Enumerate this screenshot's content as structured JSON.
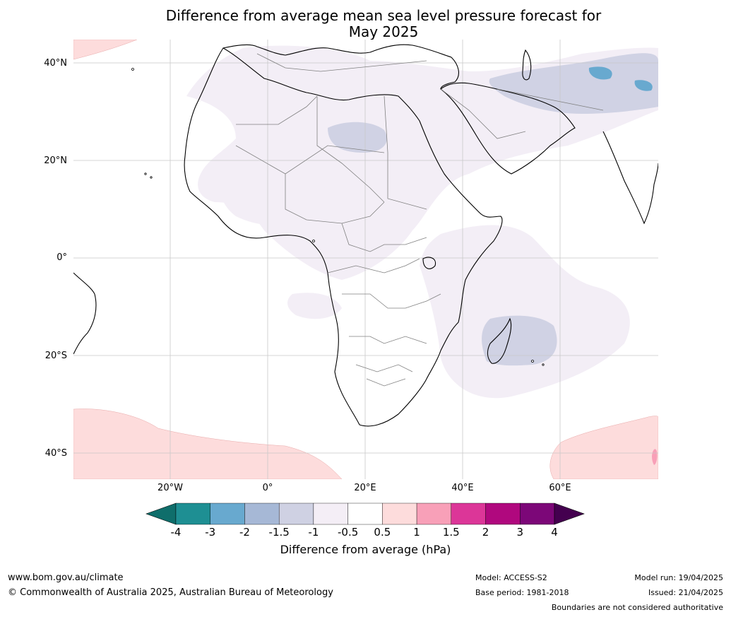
{
  "title": {
    "line1": "Difference from average mean sea level pressure forecast for",
    "line2": "May 2025"
  },
  "axes": {
    "lat_labels": [
      "40°N",
      "20°N",
      "0°",
      "20°S",
      "40°S"
    ],
    "lon_labels": [
      "20°W",
      "0°",
      "20°E",
      "40°E",
      "60°E"
    ],
    "lon_range": [
      -40,
      80
    ],
    "lat_range": [
      -45,
      45
    ],
    "grid": true
  },
  "colorbar": {
    "ticks": [
      "-4",
      "-3",
      "-2",
      "-1.5",
      "-1",
      "-0.5",
      "0.5",
      "1",
      "1.5",
      "2",
      "3",
      "4"
    ],
    "colors": [
      "#0f6e6b",
      "#1e8f93",
      "#68a9cf",
      "#a6b8d6",
      "#cfd1e3",
      "#f4eef6",
      "#ffffff",
      "#fddcdc",
      "#f8a0b8",
      "#dc3698",
      "#b0087e",
      "#7c0778",
      "#44004f"
    ],
    "label": "Difference from average (hPa)"
  },
  "map_colors": {
    "land_line": "#000000",
    "border_line": "#808080",
    "grid_line": "#c8c8c8",
    "neg_light": "#f3eef6",
    "neg_mid": "#d0d2e4",
    "neg_strong": "#68a9cf",
    "pos_light": "#fddcdc",
    "pos_mid": "#f8a0b8"
  },
  "footer": {
    "url": "www.bom.gov.au/climate",
    "copyright": "© Commonwealth of Australia 2025, Australian Bureau of Meteorology",
    "model": "Model: ACCESS-S2",
    "base_period": "Base period: 1981-2018",
    "model_run": "Model run: 19/04/2025",
    "issued": "Issued: 21/04/2025",
    "disclaimer": "Boundaries are not considered authoritative"
  }
}
